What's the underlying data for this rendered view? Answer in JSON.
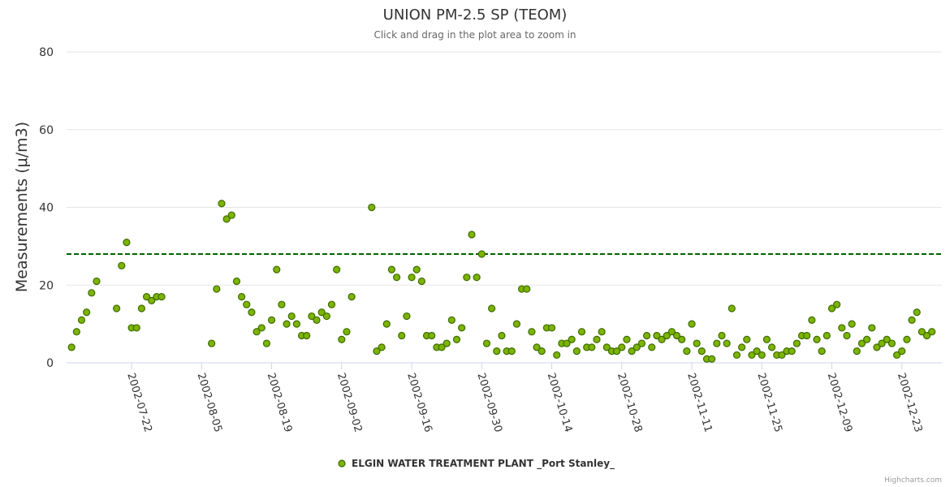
{
  "chart_data": {
    "type": "scatter",
    "title": "UNION PM-2.5 SP (TEOM)",
    "subtitle": "Click and drag in the plot area to zoom in",
    "ylabel": "Measurements (μ/m3)",
    "xlabel": "",
    "ylim": [
      0,
      80
    ],
    "yticks": [
      0,
      20,
      40,
      60,
      80
    ],
    "xlim": [
      "2002-07-09",
      "2002-12-31"
    ],
    "xticks": [
      "2002-07-22",
      "2002-08-05",
      "2002-08-19",
      "2002-09-02",
      "2002-09-16",
      "2002-09-30",
      "2002-10-14",
      "2002-10-28",
      "2002-11-11",
      "2002-11-25",
      "2002-12-09",
      "2002-12-23"
    ],
    "threshold": {
      "value": 28,
      "color": "#006400",
      "style": "dashed"
    },
    "grid": true,
    "legend_position": "bottom-center",
    "series": [
      {
        "name": "ELGIN WATER TREATMENT PLANT _Port Stanley_",
        "color": "#7cb400",
        "points": [
          [
            "2002-07-10",
            4
          ],
          [
            "2002-07-11",
            8
          ],
          [
            "2002-07-12",
            11
          ],
          [
            "2002-07-13",
            13
          ],
          [
            "2002-07-14",
            18
          ],
          [
            "2002-07-15",
            21
          ],
          [
            "2002-07-19",
            14
          ],
          [
            "2002-07-20",
            25
          ],
          [
            "2002-07-21",
            31
          ],
          [
            "2002-07-22",
            9
          ],
          [
            "2002-07-23",
            9
          ],
          [
            "2002-07-24",
            14
          ],
          [
            "2002-07-25",
            17
          ],
          [
            "2002-07-26",
            16
          ],
          [
            "2002-07-27",
            17
          ],
          [
            "2002-07-28",
            17
          ],
          [
            "2002-08-07",
            5
          ],
          [
            "2002-08-08",
            19
          ],
          [
            "2002-08-09",
            41
          ],
          [
            "2002-08-10",
            37
          ],
          [
            "2002-08-11",
            38
          ],
          [
            "2002-08-12",
            21
          ],
          [
            "2002-08-13",
            17
          ],
          [
            "2002-08-14",
            15
          ],
          [
            "2002-08-15",
            13
          ],
          [
            "2002-08-16",
            8
          ],
          [
            "2002-08-17",
            9
          ],
          [
            "2002-08-18",
            5
          ],
          [
            "2002-08-19",
            11
          ],
          [
            "2002-08-20",
            24
          ],
          [
            "2002-08-21",
            15
          ],
          [
            "2002-08-22",
            10
          ],
          [
            "2002-08-23",
            12
          ],
          [
            "2002-08-24",
            10
          ],
          [
            "2002-08-25",
            7
          ],
          [
            "2002-08-26",
            7
          ],
          [
            "2002-08-27",
            12
          ],
          [
            "2002-08-28",
            11
          ],
          [
            "2002-08-29",
            13
          ],
          [
            "2002-08-30",
            12
          ],
          [
            "2002-08-31",
            15
          ],
          [
            "2002-09-01",
            24
          ],
          [
            "2002-09-02",
            6
          ],
          [
            "2002-09-03",
            8
          ],
          [
            "2002-09-04",
            17
          ],
          [
            "2002-09-08",
            40
          ],
          [
            "2002-09-09",
            3
          ],
          [
            "2002-09-10",
            4
          ],
          [
            "2002-09-11",
            10
          ],
          [
            "2002-09-12",
            24
          ],
          [
            "2002-09-13",
            22
          ],
          [
            "2002-09-14",
            7
          ],
          [
            "2002-09-15",
            12
          ],
          [
            "2002-09-16",
            22
          ],
          [
            "2002-09-17",
            24
          ],
          [
            "2002-09-18",
            21
          ],
          [
            "2002-09-19",
            7
          ],
          [
            "2002-09-20",
            7
          ],
          [
            "2002-09-21",
            4
          ],
          [
            "2002-09-22",
            4
          ],
          [
            "2002-09-23",
            5
          ],
          [
            "2002-09-24",
            11
          ],
          [
            "2002-09-25",
            6
          ],
          [
            "2002-09-26",
            9
          ],
          [
            "2002-09-27",
            22
          ],
          [
            "2002-09-28",
            33
          ],
          [
            "2002-09-29",
            22
          ],
          [
            "2002-09-30",
            28
          ],
          [
            "2002-10-01",
            5
          ],
          [
            "2002-10-02",
            14
          ],
          [
            "2002-10-03",
            3
          ],
          [
            "2002-10-04",
            7
          ],
          [
            "2002-10-05",
            3
          ],
          [
            "2002-10-06",
            3
          ],
          [
            "2002-10-07",
            10
          ],
          [
            "2002-10-08",
            19
          ],
          [
            "2002-10-09",
            19
          ],
          [
            "2002-10-10",
            8
          ],
          [
            "2002-10-11",
            4
          ],
          [
            "2002-10-12",
            3
          ],
          [
            "2002-10-13",
            9
          ],
          [
            "2002-10-14",
            9
          ],
          [
            "2002-10-15",
            2
          ],
          [
            "2002-10-16",
            5
          ],
          [
            "2002-10-17",
            5
          ],
          [
            "2002-10-18",
            6
          ],
          [
            "2002-10-19",
            3
          ],
          [
            "2002-10-20",
            8
          ],
          [
            "2002-10-21",
            4
          ],
          [
            "2002-10-22",
            4
          ],
          [
            "2002-10-23",
            6
          ],
          [
            "2002-10-24",
            8
          ],
          [
            "2002-10-25",
            4
          ],
          [
            "2002-10-26",
            3
          ],
          [
            "2002-10-27",
            3
          ],
          [
            "2002-10-28",
            4
          ],
          [
            "2002-10-29",
            6
          ],
          [
            "2002-10-30",
            3
          ],
          [
            "2002-10-31",
            4
          ],
          [
            "2002-11-01",
            5
          ],
          [
            "2002-11-02",
            7
          ],
          [
            "2002-11-03",
            4
          ],
          [
            "2002-11-04",
            7
          ],
          [
            "2002-11-05",
            6
          ],
          [
            "2002-11-06",
            7
          ],
          [
            "2002-11-07",
            8
          ],
          [
            "2002-11-08",
            7
          ],
          [
            "2002-11-09",
            6
          ],
          [
            "2002-11-10",
            3
          ],
          [
            "2002-11-11",
            10
          ],
          [
            "2002-11-12",
            5
          ],
          [
            "2002-11-13",
            3
          ],
          [
            "2002-11-14",
            1
          ],
          [
            "2002-11-15",
            1
          ],
          [
            "2002-11-16",
            5
          ],
          [
            "2002-11-17",
            7
          ],
          [
            "2002-11-18",
            5
          ],
          [
            "2002-11-19",
            14
          ],
          [
            "2002-11-20",
            2
          ],
          [
            "2002-11-21",
            4
          ],
          [
            "2002-11-22",
            6
          ],
          [
            "2002-11-23",
            2
          ],
          [
            "2002-11-24",
            3
          ],
          [
            "2002-11-25",
            2
          ],
          [
            "2002-11-26",
            6
          ],
          [
            "2002-11-27",
            4
          ],
          [
            "2002-11-28",
            2
          ],
          [
            "2002-11-29",
            2
          ],
          [
            "2002-11-30",
            3
          ],
          [
            "2002-12-01",
            3
          ],
          [
            "2002-12-02",
            5
          ],
          [
            "2002-12-03",
            7
          ],
          [
            "2002-12-04",
            7
          ],
          [
            "2002-12-05",
            11
          ],
          [
            "2002-12-06",
            6
          ],
          [
            "2002-12-07",
            3
          ],
          [
            "2002-12-08",
            7
          ],
          [
            "2002-12-09",
            14
          ],
          [
            "2002-12-10",
            15
          ],
          [
            "2002-12-11",
            9
          ],
          [
            "2002-12-12",
            7
          ],
          [
            "2002-12-13",
            10
          ],
          [
            "2002-12-14",
            3
          ],
          [
            "2002-12-15",
            5
          ],
          [
            "2002-12-16",
            6
          ],
          [
            "2002-12-17",
            9
          ],
          [
            "2002-12-18",
            4
          ],
          [
            "2002-12-19",
            5
          ],
          [
            "2002-12-20",
            6
          ],
          [
            "2002-12-21",
            5
          ],
          [
            "2002-12-22",
            2
          ],
          [
            "2002-12-23",
            3
          ],
          [
            "2002-12-24",
            6
          ],
          [
            "2002-12-25",
            11
          ],
          [
            "2002-12-26",
            13
          ],
          [
            "2002-12-27",
            8
          ],
          [
            "2002-12-28",
            7
          ],
          [
            "2002-12-29",
            8
          ]
        ]
      }
    ]
  },
  "credits": "Highcharts.com"
}
